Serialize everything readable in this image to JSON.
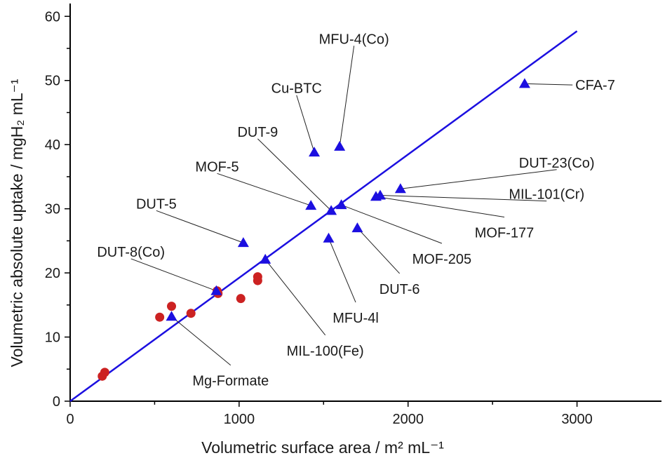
{
  "chart_data": {
    "type": "scatter",
    "xlabel": "Volumetric surface area / m² mL⁻¹",
    "ylabel": "Volumetric absolute uptake / mgH₂ mL⁻¹",
    "xlim": [
      0,
      3500
    ],
    "ylim": [
      0,
      62
    ],
    "xticks": [
      0,
      1000,
      2000,
      3000
    ],
    "xtick_labels": [
      "0",
      "1000",
      "2000",
      "3000"
    ],
    "yticks": [
      0,
      10,
      20,
      30,
      40,
      50,
      60
    ],
    "ytick_labels": [
      "0",
      "10",
      "20",
      "30",
      "40",
      "50",
      "60"
    ],
    "grid": false,
    "colors": {
      "triangles": "#1c0fe0",
      "circles": "#cc2222",
      "fit_line": "#1c0fe0"
    },
    "fit_line": {
      "x": [
        0,
        3000
      ],
      "y": [
        0,
        57.7
      ]
    },
    "circles": [
      {
        "x": 190,
        "y": 3.9
      },
      {
        "x": 205,
        "y": 4.5
      },
      {
        "x": 530,
        "y": 13.1
      },
      {
        "x": 600,
        "y": 14.8
      },
      {
        "x": 715,
        "y": 13.7
      },
      {
        "x": 870,
        "y": 17.2
      },
      {
        "x": 875,
        "y": 16.8
      },
      {
        "x": 1010,
        "y": 16.0
      },
      {
        "x": 1110,
        "y": 18.8
      },
      {
        "x": 1110,
        "y": 19.4
      }
    ],
    "triangles": [
      {
        "label": "CFA-7",
        "x": 2690,
        "y": 49.5,
        "lx": 2990,
        "ly": 49.3,
        "anchor": "start"
      },
      {
        "label": "MFU-4(Co)",
        "x": 1595,
        "y": 39.7,
        "lx": 1680,
        "ly": 56.5,
        "anchor": "middle"
      },
      {
        "label": "Cu-BTC",
        "x": 1445,
        "y": 38.8,
        "lx": 1340,
        "ly": 48.8,
        "anchor": "middle"
      },
      {
        "label": "DUT-9",
        "x": 1545,
        "y": 29.7,
        "lx": 1110,
        "ly": 42.0,
        "anchor": "middle"
      },
      {
        "label": "MOF-5",
        "x": 1425,
        "y": 30.5,
        "lx": 870,
        "ly": 36.6,
        "anchor": "middle"
      },
      {
        "label": "DUT-23(Co)",
        "x": 1955,
        "y": 33.1,
        "lx": 2880,
        "ly": 37.2,
        "anchor": "middle"
      },
      {
        "label": "MIL-101(Cr)",
        "x": 1835,
        "y": 32.1,
        "lx": 2820,
        "ly": 32.3,
        "anchor": "middle"
      },
      {
        "label": "MOF-177",
        "x": 1810,
        "y": 31.9,
        "lx": 2570,
        "ly": 26.3,
        "anchor": "middle"
      },
      {
        "label": "DUT-5",
        "x": 1025,
        "y": 24.7,
        "lx": 510,
        "ly": 30.8,
        "anchor": "middle"
      },
      {
        "label": "MOF-205",
        "x": 1605,
        "y": 30.6,
        "lx": 2200,
        "ly": 22.2,
        "anchor": "middle"
      },
      {
        "label": "DUT-6",
        "x": 1700,
        "y": 27.0,
        "lx": 1950,
        "ly": 17.5,
        "anchor": "middle"
      },
      {
        "label": "DUT-8(Co)",
        "x": 865,
        "y": 17.2,
        "lx": 360,
        "ly": 23.3,
        "anchor": "middle"
      },
      {
        "label": "MIL-100(Fe)",
        "x": 1155,
        "y": 22.1,
        "lx": 1510,
        "ly": 7.9,
        "anchor": "middle"
      },
      {
        "label": "MFU-4l",
        "x": 1530,
        "y": 25.4,
        "lx": 1690,
        "ly": 13.0,
        "anchor": "middle"
      },
      {
        "label": "Mg-Formate",
        "x": 600,
        "y": 13.2,
        "lx": 950,
        "ly": 3.2,
        "anchor": "middle"
      }
    ]
  }
}
